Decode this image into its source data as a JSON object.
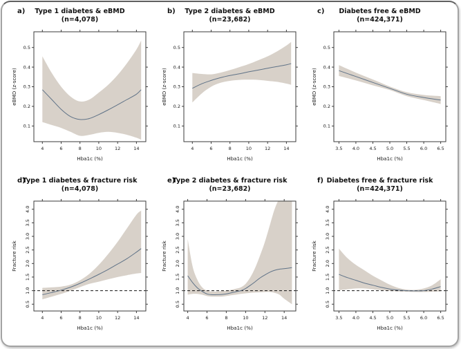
{
  "figure": {
    "description": "Six-panel figure of non-linear association curves with shaded confidence bands",
    "panel_labels": [
      "a)",
      "b)",
      "c)",
      "d)",
      "e)",
      "f)"
    ]
  },
  "colors": {
    "band": "#d8d1c9",
    "line": "#5f7287",
    "axis": "#3a3a3a",
    "text": "#1a1a1a",
    "ref_line": "#111111",
    "card_border": "#a3a3a3",
    "background": "#ffffff"
  },
  "chart_data": [
    {
      "type": "line",
      "label": "a)",
      "title": "Type 1 diabetes & eBMD",
      "subtitle": "(n=4,078)",
      "xlabel": "Hba1c (%)",
      "ylabel": "eBMD (z-score)",
      "xlim": [
        3.1,
        15.0
      ],
      "ylim": [
        0.02,
        0.58
      ],
      "xticks": [
        4,
        6,
        8,
        10,
        12,
        14
      ],
      "xtick_labels": [
        "4",
        "6",
        "8",
        "10",
        "12",
        "14"
      ],
      "yticks": [
        0.1,
        0.2,
        0.3,
        0.4,
        0.5
      ],
      "ytick_labels": [
        "0.1",
        "0.2",
        "0.3",
        "0.4",
        "0.5"
      ],
      "ytick_rotated": false,
      "ref_line": null,
      "x": [
        4,
        5,
        6,
        7,
        8,
        9,
        10,
        11,
        12,
        13,
        14,
        14.5
      ],
      "y": [
        0.285,
        0.235,
        0.185,
        0.148,
        0.133,
        0.138,
        0.158,
        0.182,
        0.208,
        0.235,
        0.262,
        0.285
      ],
      "upper": [
        0.455,
        0.37,
        0.3,
        0.25,
        0.225,
        0.235,
        0.27,
        0.31,
        0.36,
        0.42,
        0.49,
        0.535
      ],
      "lower": [
        0.12,
        0.105,
        0.09,
        0.07,
        0.05,
        0.055,
        0.065,
        0.07,
        0.065,
        0.055,
        0.04,
        0.03
      ]
    },
    {
      "type": "line",
      "label": "b)",
      "title": "Type 2 diabetes & eBMD",
      "subtitle": "(n=23,682)",
      "xlabel": "Hba1c (%)",
      "ylabel": "eBMD (z-score)",
      "xlim": [
        3.1,
        15.0
      ],
      "ylim": [
        0.02,
        0.58
      ],
      "xticks": [
        4,
        6,
        8,
        10,
        12,
        14
      ],
      "xtick_labels": [
        "4",
        "6",
        "8",
        "10",
        "12",
        "14"
      ],
      "yticks": [
        0.1,
        0.2,
        0.3,
        0.4,
        0.5
      ],
      "ytick_labels": [
        "0.1",
        "0.2",
        "0.3",
        "0.4",
        "0.5"
      ],
      "ytick_rotated": false,
      "ref_line": null,
      "x": [
        4,
        5,
        6,
        7,
        8,
        9,
        10,
        11,
        12,
        13,
        14,
        14.5
      ],
      "y": [
        0.292,
        0.315,
        0.332,
        0.346,
        0.357,
        0.366,
        0.376,
        0.385,
        0.394,
        0.403,
        0.412,
        0.418
      ],
      "upper": [
        0.37,
        0.365,
        0.363,
        0.372,
        0.385,
        0.4,
        0.416,
        0.435,
        0.455,
        0.48,
        0.51,
        0.528
      ],
      "lower": [
        0.22,
        0.266,
        0.3,
        0.32,
        0.33,
        0.335,
        0.336,
        0.335,
        0.33,
        0.325,
        0.316,
        0.31
      ]
    },
    {
      "type": "line",
      "label": "c)",
      "title": "Diabetes free & eBMD",
      "subtitle": "(n=424,371)",
      "xlabel": "Hba1c (%)",
      "ylabel": "eBMD (z-score)",
      "xlim": [
        3.35,
        6.65
      ],
      "ylim": [
        0.02,
        0.58
      ],
      "xticks": [
        3.5,
        4.0,
        4.5,
        5.0,
        5.5,
        6.0,
        6.5
      ],
      "xtick_labels": [
        "3.5",
        "4.0",
        "4.5",
        "5.0",
        "5.5",
        "6.0",
        "6.5"
      ],
      "yticks": [
        0.1,
        0.2,
        0.3,
        0.4,
        0.5
      ],
      "ytick_labels": [
        "0.1",
        "0.2",
        "0.3",
        "0.4",
        "0.5"
      ],
      "ytick_rotated": false,
      "ref_line": null,
      "x": [
        3.5,
        4.0,
        4.5,
        5.0,
        5.5,
        6.0,
        6.5
      ],
      "y": [
        0.382,
        0.352,
        0.322,
        0.292,
        0.262,
        0.245,
        0.232
      ],
      "upper": [
        0.41,
        0.372,
        0.337,
        0.301,
        0.272,
        0.258,
        0.252
      ],
      "lower": [
        0.355,
        0.332,
        0.307,
        0.283,
        0.252,
        0.232,
        0.212
      ]
    },
    {
      "type": "line",
      "label": "d)",
      "title": "Type 1 diabetes & fracture risk",
      "subtitle": "(n=4,078)",
      "xlabel": "Hba1c (%)",
      "ylabel": "Fracture risk",
      "xlim": [
        3.1,
        15.0
      ],
      "ylim": [
        0.25,
        4.3
      ],
      "xticks": [
        4,
        6,
        8,
        10,
        12,
        14
      ],
      "xtick_labels": [
        "4",
        "6",
        "8",
        "10",
        "12",
        "14"
      ],
      "yticks": [
        0.5,
        1.0,
        1.5,
        2.0,
        2.5,
        3.0,
        3.5,
        4.0
      ],
      "ytick_labels": [
        "0.5",
        "1.0",
        "1.5",
        "2.0",
        "2.5",
        "3.0",
        "3.5",
        "4.0"
      ],
      "ytick_rotated": true,
      "ref_line": 1.0,
      "x": [
        4,
        5,
        6,
        7,
        8,
        9,
        10,
        11,
        12,
        13,
        14,
        14.5
      ],
      "y": [
        0.85,
        0.93,
        1.02,
        1.13,
        1.27,
        1.43,
        1.6,
        1.78,
        1.98,
        2.18,
        2.42,
        2.55
      ],
      "upper": [
        1.1,
        1.12,
        1.15,
        1.22,
        1.38,
        1.62,
        1.95,
        2.35,
        2.8,
        3.3,
        3.8,
        3.95
      ],
      "lower": [
        0.68,
        0.78,
        0.88,
        1.0,
        1.13,
        1.25,
        1.33,
        1.42,
        1.5,
        1.57,
        1.63,
        1.65
      ]
    },
    {
      "type": "line",
      "label": "e)",
      "title": "Type 2 diabetes & fracture risk",
      "subtitle": "(n=23,682)",
      "xlabel": "Hba1c (%)",
      "ylabel": "Fracture risk",
      "xlim": [
        3.6,
        15.2
      ],
      "ylim": [
        0.25,
        4.3
      ],
      "xticks": [
        4,
        6,
        8,
        10,
        12,
        14
      ],
      "xtick_labels": [
        "4",
        "6",
        "8",
        "10",
        "12",
        "14"
      ],
      "yticks": [
        0.5,
        1.0,
        1.5,
        2.0,
        2.5,
        3.0,
        3.5,
        4.0
      ],
      "ytick_labels": [
        "0.5",
        "1.0",
        "1.5",
        "2.0",
        "2.5",
        "3.0",
        "3.5",
        "4.0"
      ],
      "ytick_rotated": true,
      "ref_line": 1.0,
      "x": [
        4,
        4.5,
        5,
        5.5,
        6,
        6.5,
        7,
        7.5,
        8,
        8.5,
        9,
        9.5,
        10,
        10.5,
        11,
        11.5,
        12,
        12.5,
        13,
        13.5,
        14,
        14.8
      ],
      "y": [
        1.55,
        1.3,
        1.1,
        0.97,
        0.88,
        0.85,
        0.85,
        0.86,
        0.88,
        0.92,
        0.96,
        1.0,
        1.08,
        1.2,
        1.33,
        1.47,
        1.58,
        1.68,
        1.75,
        1.79,
        1.81,
        1.85
      ],
      "upper": [
        2.9,
        1.9,
        1.4,
        1.12,
        1.0,
        0.97,
        0.97,
        0.98,
        1.0,
        1.03,
        1.07,
        1.12,
        1.25,
        1.5,
        1.85,
        2.3,
        2.8,
        3.4,
        4.0,
        4.4,
        4.6,
        4.7
      ],
      "lower": [
        0.85,
        0.88,
        0.88,
        0.85,
        0.8,
        0.78,
        0.78,
        0.78,
        0.8,
        0.83,
        0.85,
        0.88,
        0.9,
        0.92,
        0.93,
        0.94,
        0.95,
        0.95,
        0.92,
        0.85,
        0.7,
        0.5
      ]
    },
    {
      "type": "line",
      "label": "f)",
      "title": "Diabetes free & fracture risk",
      "subtitle": "(n=424,371)",
      "xlabel": "Hba1c (%)",
      "ylabel": "Fracture risk",
      "xlim": [
        3.35,
        6.65
      ],
      "ylim": [
        0.25,
        4.3
      ],
      "xticks": [
        3.5,
        4.0,
        4.5,
        5.0,
        5.5,
        6.0,
        6.5
      ],
      "xtick_labels": [
        "3.5",
        "4.0",
        "4.5",
        "5.0",
        "5.5",
        "6.0",
        "6.5"
      ],
      "yticks": [
        0.5,
        1.0,
        1.5,
        2.0,
        2.5,
        3.0,
        3.5,
        4.0
      ],
      "ytick_labels": [
        "0.5",
        "1.0",
        "1.5",
        "2.0",
        "2.5",
        "3.0",
        "3.5",
        "4.0"
      ],
      "ytick_rotated": true,
      "ref_line": 1.0,
      "x": [
        3.5,
        3.75,
        4,
        4.25,
        4.5,
        4.75,
        5,
        5.25,
        5.5,
        5.75,
        6,
        6.25,
        6.5
      ],
      "y": [
        1.6,
        1.48,
        1.38,
        1.28,
        1.2,
        1.12,
        1.06,
        1.02,
        1.0,
        0.99,
        1.0,
        1.06,
        1.15
      ],
      "upper": [
        2.55,
        2.2,
        1.95,
        1.75,
        1.55,
        1.38,
        1.22,
        1.1,
        1.04,
        1.03,
        1.08,
        1.2,
        1.42
      ],
      "lower": [
        1.02,
        1.05,
        1.08,
        1.08,
        1.05,
        1.02,
        0.99,
        0.97,
        0.96,
        0.95,
        0.95,
        0.96,
        0.97
      ]
    }
  ]
}
